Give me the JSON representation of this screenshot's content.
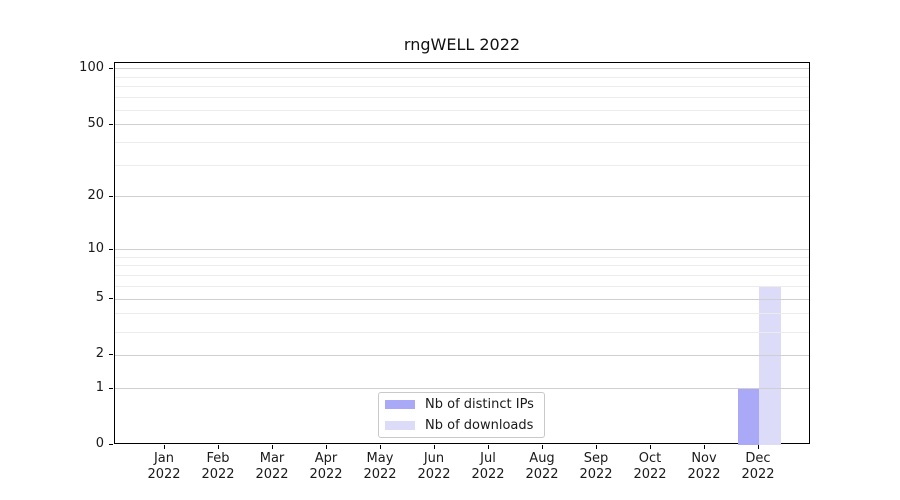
{
  "chart_data": {
    "type": "bar",
    "title": "rngWELL 2022",
    "categories": [
      "Jan",
      "Feb",
      "Mar",
      "Apr",
      "May",
      "Jun",
      "Jul",
      "Aug",
      "Sep",
      "Oct",
      "Nov",
      "Dec"
    ],
    "year_label": "2022",
    "series": [
      {
        "name": "Nb of distinct IPs",
        "color": "#a9a9f7",
        "values": [
          0,
          0,
          0,
          0,
          0,
          0,
          0,
          0,
          0,
          0,
          0,
          1
        ]
      },
      {
        "name": "Nb of downloads",
        "color": "#dcdcf9",
        "values": [
          0,
          0,
          0,
          0,
          0,
          0,
          0,
          0,
          0,
          0,
          0,
          6
        ]
      }
    ],
    "y_scale": "log10(1+y)",
    "y_ticks": [
      0,
      1,
      2,
      5,
      10,
      20,
      50,
      100
    ],
    "y_minor_gridlines": [
      3,
      4,
      6,
      7,
      8,
      9,
      30,
      40,
      60,
      70,
      80,
      90
    ],
    "ylim": [
      0,
      108
    ],
    "xlabel": "",
    "ylabel": "",
    "grid": "horizontal",
    "legend_position": "lower center",
    "colors": {
      "major_grid": "#cfcfcf",
      "minor_grid": "#ececec",
      "frame": "#000000",
      "text": "#1a1a1a"
    }
  }
}
